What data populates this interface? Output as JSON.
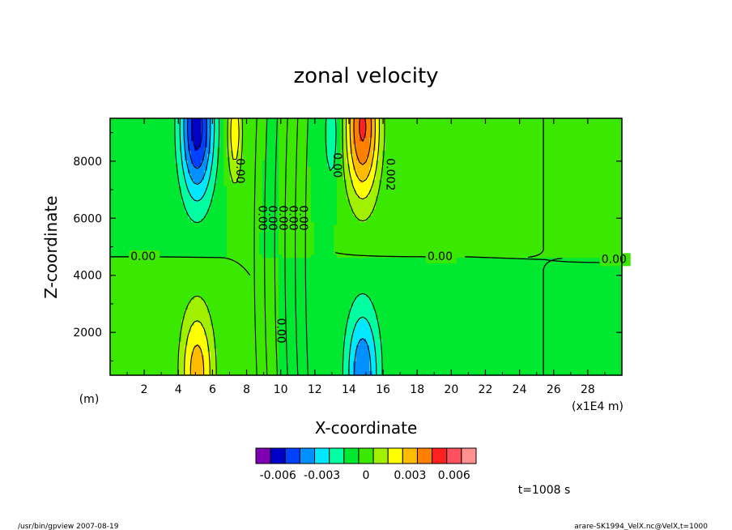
{
  "chart_data": {
    "type": "heatmap",
    "title": "zonal velocity",
    "xlabel": "X-coordinate",
    "ylabel": "Z-coordinate",
    "x_unit_left": "(m)",
    "x_unit_right": "(x1E4 m)",
    "x_ticks": [
      "2",
      "4",
      "6",
      "8",
      "10",
      "12",
      "14",
      "16",
      "18",
      "20",
      "22",
      "24",
      "26",
      "28"
    ],
    "y_ticks": [
      "2000",
      "4000",
      "6000",
      "8000"
    ],
    "xlim": [
      0,
      30
    ],
    "ylim": [
      500,
      9500
    ],
    "x_tick_values": [
      2,
      4,
      6,
      8,
      10,
      12,
      14,
      16,
      18,
      20,
      22,
      24,
      26,
      28
    ],
    "y_tick_values": [
      2000,
      4000,
      6000,
      8000
    ],
    "background_value": 0.0,
    "features": [
      {
        "x": 5.1,
        "z": 9200,
        "value": -0.0055,
        "sx": 1.0,
        "sz": 2600
      },
      {
        "x": 5.1,
        "z": 600,
        "value": 0.0035,
        "sx": 1.0,
        "sz": 2400
      },
      {
        "x": 14.8,
        "z": 9200,
        "value": 0.0052,
        "sx": 1.0,
        "sz": 2600
      },
      {
        "x": 14.8,
        "z": 600,
        "value": -0.0038,
        "sx": 1.0,
        "sz": 2400
      },
      {
        "x": 7.3,
        "z": 9000,
        "value": 0.0028,
        "sx": 0.45,
        "sz": 1800
      },
      {
        "x": 13.0,
        "z": 9000,
        "value": -0.002,
        "sx": 0.45,
        "sz": 1800
      }
    ],
    "contour_labels": [
      {
        "x": 1.2,
        "z": 4650,
        "text": "0.00"
      },
      {
        "x": 18.6,
        "z": 4650,
        "text": "0.00"
      },
      {
        "x": 28.8,
        "z": 4550,
        "text": "0.00"
      },
      {
        "x": 13.3,
        "z": 8300,
        "text": "0.00"
      },
      {
        "x": 16.4,
        "z": 8100,
        "text": "0.002"
      },
      {
        "x": 7.6,
        "z": 8100,
        "text": "0.00"
      },
      {
        "x": 8.9,
        "z": 6450,
        "text": "0.00"
      },
      {
        "x": 9.5,
        "z": 6450,
        "text": "0.00"
      },
      {
        "x": 10.1,
        "z": 6450,
        "text": "0.00"
      },
      {
        "x": 10.7,
        "z": 6450,
        "text": "0.00"
      },
      {
        "x": 11.3,
        "z": 6450,
        "text": "0.00"
      },
      {
        "x": 10.0,
        "z": 2500,
        "text": "0.00"
      }
    ],
    "colorbar": {
      "levels": [
        -0.007,
        -0.006,
        -0.005,
        -0.004,
        -0.003,
        -0.002,
        -0.001,
        0,
        0.001,
        0.002,
        0.003,
        0.004,
        0.005,
        0.006,
        0.007
      ],
      "colors": [
        "#7f00b2",
        "#0000c8",
        "#0040ff",
        "#0090ff",
        "#00e8ff",
        "#00ffa0",
        "#00e830",
        "#3ae800",
        "#a0f000",
        "#ffff00",
        "#ffbb00",
        "#ff8000",
        "#ff2020",
        "#ff5060",
        "#ff9090"
      ],
      "tick_labels": [
        "-0.006",
        "-0.003",
        "0",
        "0.003",
        "0.006"
      ],
      "tick_values": [
        -0.006,
        -0.003,
        0,
        0.003,
        0.006
      ]
    },
    "time_label": "t=1008 s",
    "footer_left": "/usr/bin/gpview   2007-08-19",
    "footer_right": "arare-SK1994_VelX.nc@VelX,t=1000"
  }
}
